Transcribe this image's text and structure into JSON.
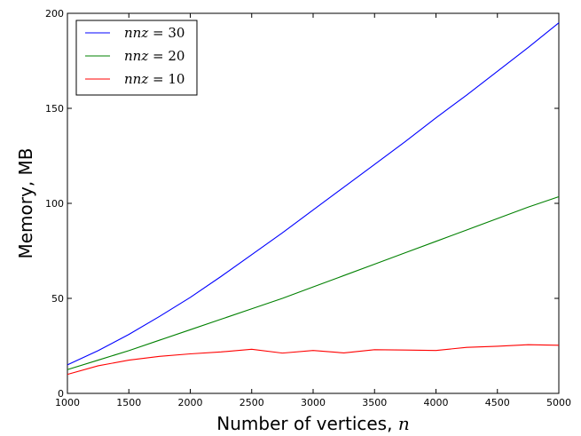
{
  "chart_data": {
    "type": "line",
    "xlabel": "Number of vertices, ",
    "xlabel_var": "n",
    "ylabel": "Memory, MB",
    "xlim": [
      1000,
      5000
    ],
    "ylim": [
      0,
      200
    ],
    "xticks": [
      1000,
      1500,
      2000,
      2500,
      3000,
      3500,
      4000,
      4500,
      5000
    ],
    "yticks": [
      0,
      50,
      100,
      150,
      200
    ],
    "grid": false,
    "legend_position": "top-left",
    "x": [
      1000,
      1250,
      1500,
      1750,
      2000,
      2250,
      2500,
      2750,
      3000,
      3250,
      3500,
      3750,
      4000,
      4250,
      4500,
      4750,
      5000
    ],
    "series": [
      {
        "name_var": "nnz",
        "name_value": " = 30",
        "color": "#0000ff",
        "values": [
          15,
          22.5,
          31,
          40.5,
          50.5,
          61.5,
          73,
          84.5,
          96.5,
          108.5,
          120.5,
          132.5,
          145,
          157,
          169.5,
          182,
          195
        ]
      },
      {
        "name_var": "nnz",
        "name_value": " = 20",
        "color": "#008000",
        "values": [
          12.5,
          17.5,
          22.5,
          28,
          33.5,
          39,
          44.5,
          50,
          56,
          62,
          68,
          74,
          80,
          86,
          92,
          98,
          103.5
        ]
      },
      {
        "name_var": "nnz",
        "name_value": " = 10",
        "color": "#ff0000",
        "values": [
          10,
          14.5,
          17.5,
          19.5,
          20.8,
          21.8,
          23.2,
          21.2,
          22.6,
          21.3,
          23,
          22.8,
          22.6,
          24.2,
          24.8,
          25.6,
          25.3
        ]
      }
    ]
  }
}
